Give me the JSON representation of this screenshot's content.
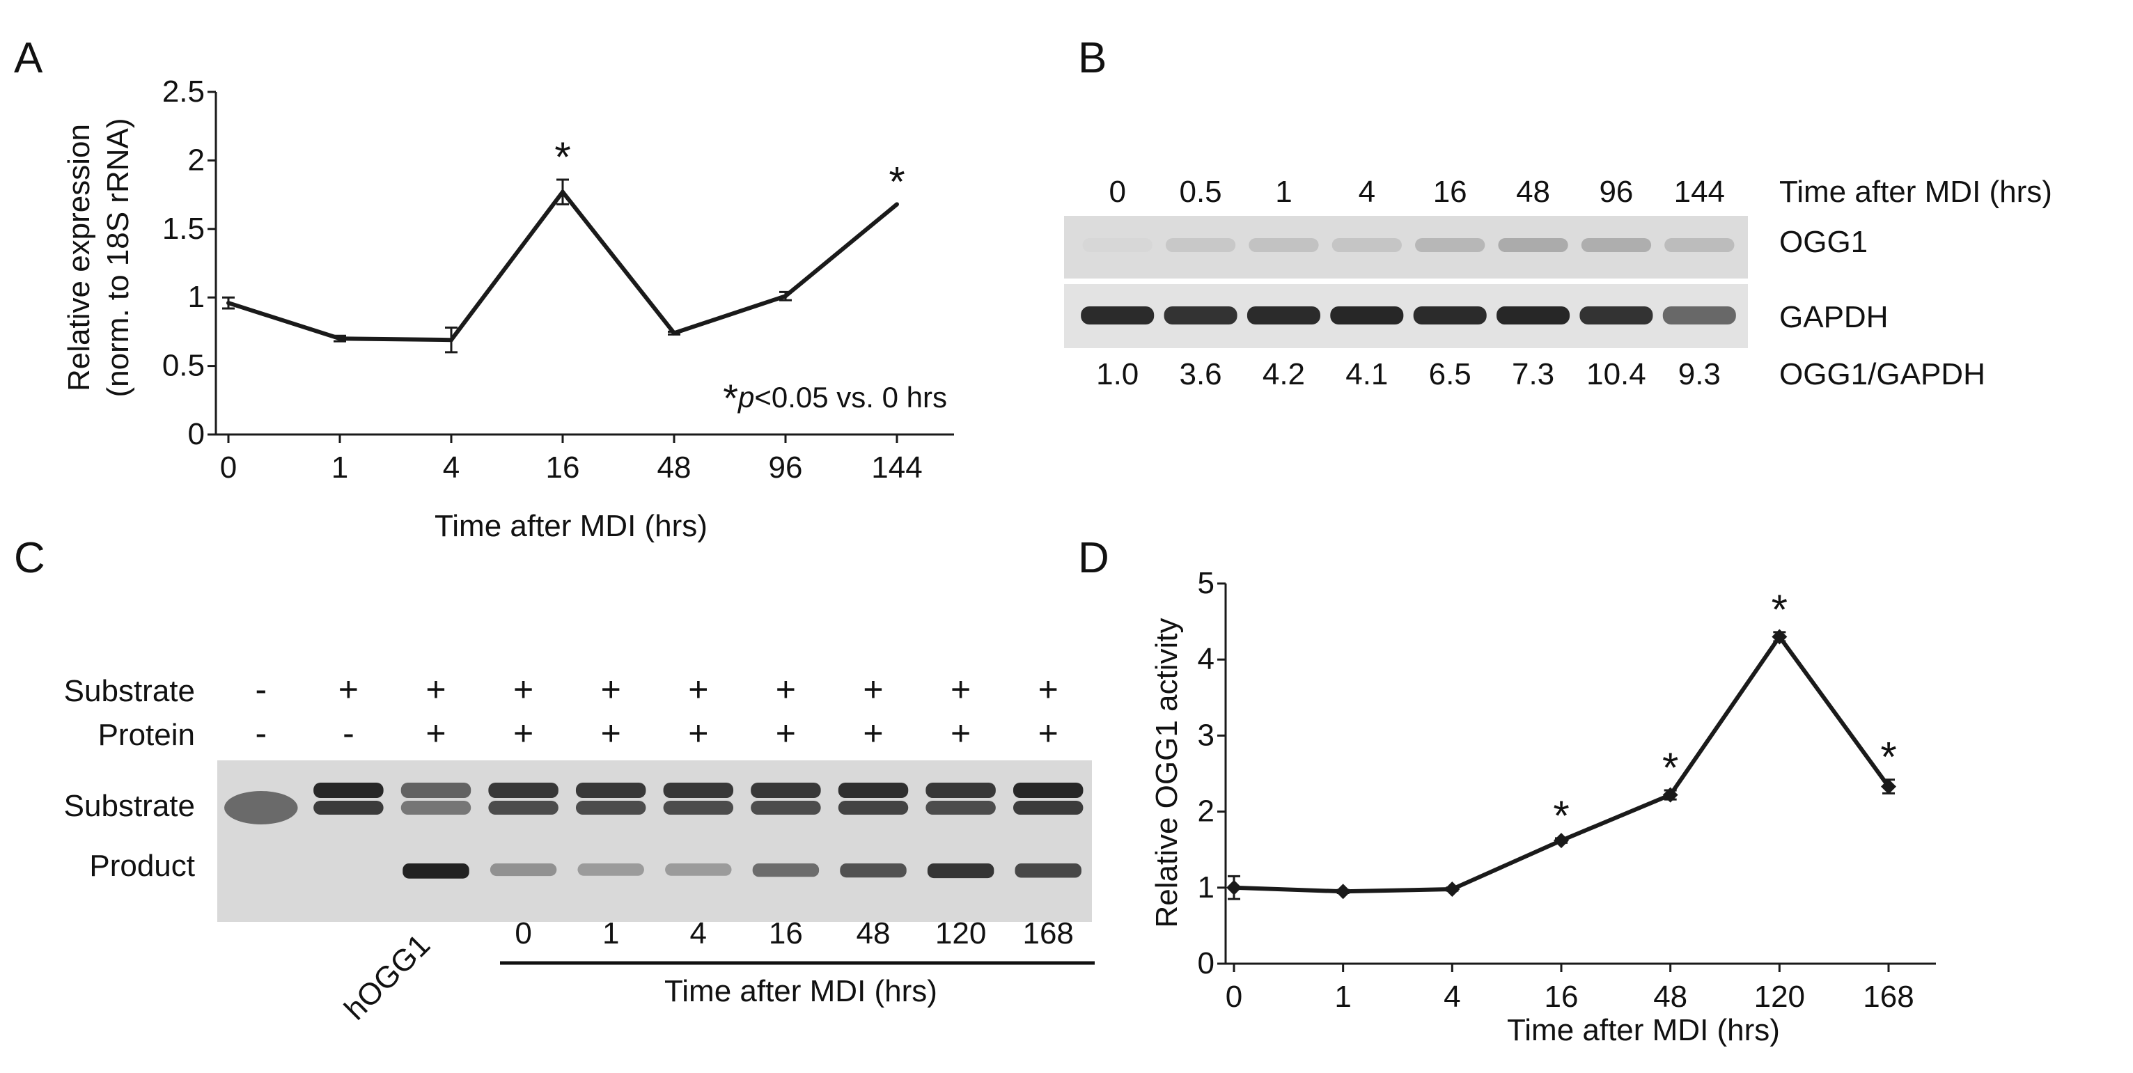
{
  "panels": {
    "a": {
      "letter": "A"
    },
    "b": {
      "letter": "B"
    },
    "c": {
      "letter": "C"
    },
    "d": {
      "letter": "D"
    }
  },
  "colors": {
    "line": "#1a1a1a",
    "text": "#111111",
    "band_dark": "#202020",
    "band_mid": "#5a5a5a"
  },
  "chart_data": [
    {
      "id": "A",
      "type": "line",
      "title": "",
      "xlabel": "Time after MDI (hrs)",
      "ylabel": "Relative expression",
      "ylabel2": "(norm. to 18S rRNA)",
      "categories": [
        "0",
        "1",
        "4",
        "16",
        "48",
        "96",
        "144"
      ],
      "values": [
        0.96,
        0.7,
        0.69,
        1.77,
        0.74,
        1.01,
        1.68
      ],
      "errors": [
        0.04,
        0.02,
        0.09,
        0.09,
        0.01,
        0.03,
        0.0
      ],
      "significant": [
        false,
        false,
        false,
        true,
        false,
        false,
        true
      ],
      "ylim": [
        0,
        2.5
      ],
      "yticks": [
        "0",
        "0.5",
        "1",
        "1.5",
        "2",
        "2.5"
      ],
      "ytick_values": [
        0,
        0.5,
        1,
        1.5,
        2,
        2.5
      ],
      "significance_marker": "*",
      "annotation_star": "*",
      "annotation_p": "p",
      "annotation_rest": "<0.05 vs. 0 hrs",
      "grid": false
    },
    {
      "id": "D",
      "type": "line",
      "title": "",
      "xlabel": "Time after MDI (hrs)",
      "ylabel": "Relative OGG1 activity",
      "categories": [
        "0",
        "1",
        "4",
        "16",
        "48",
        "120",
        "168"
      ],
      "values": [
        1.0,
        0.95,
        0.98,
        1.62,
        2.22,
        4.3,
        2.33
      ],
      "errors": [
        0.15,
        0.02,
        0.02,
        0.03,
        0.06,
        0.06,
        0.09
      ],
      "significant": [
        false,
        false,
        false,
        true,
        true,
        true,
        true
      ],
      "ylim": [
        0,
        5
      ],
      "yticks": [
        "0",
        "1",
        "2",
        "3",
        "4",
        "5"
      ],
      "ytick_values": [
        0,
        1,
        2,
        3,
        4,
        5
      ],
      "significance_marker": "*",
      "grid": false
    }
  ],
  "western": {
    "time_header": "Time after MDI (hrs)",
    "lanes": [
      "0",
      "0.5",
      "1",
      "4",
      "16",
      "48",
      "96",
      "144"
    ],
    "ratios": [
      "1.0",
      "3.6",
      "4.2",
      "4.1",
      "6.5",
      "7.3",
      "10.4",
      "9.3"
    ],
    "ogg1_intensity": [
      0.05,
      0.18,
      0.22,
      0.2,
      0.32,
      0.42,
      0.4,
      0.28
    ],
    "gapdh_intensity": [
      0.9,
      0.85,
      0.9,
      0.92,
      0.9,
      0.92,
      0.85,
      0.55
    ],
    "row_labels": {
      "ogg1": "OGG1",
      "gapdh": "GAPDH",
      "ratio": "OGG1/GAPDH"
    }
  },
  "gel": {
    "row_substrate_label": "Substrate",
    "row_protein_label": "Protein",
    "substrate_signs": [
      "-",
      "+",
      "+",
      "+",
      "+",
      "+",
      "+",
      "+",
      "+",
      "+"
    ],
    "protein_signs": [
      "-",
      "-",
      "+",
      "+",
      "+",
      "+",
      "+",
      "+",
      "+",
      "+"
    ],
    "band_substrate_label": "Substrate",
    "band_product_label": "Product",
    "hogg1_label": "hOGG1",
    "lane_times": [
      "0",
      "1",
      "4",
      "16",
      "48",
      "120",
      "168"
    ],
    "time_label": "Time after MDI (hrs)",
    "substrate_intensity": [
      0.55,
      0.95,
      0.6,
      0.85,
      0.85,
      0.85,
      0.85,
      0.9,
      0.85,
      0.95
    ],
    "product_intensity": [
      0,
      0,
      0.95,
      0.35,
      0.3,
      0.3,
      0.55,
      0.7,
      0.85,
      0.75
    ]
  }
}
